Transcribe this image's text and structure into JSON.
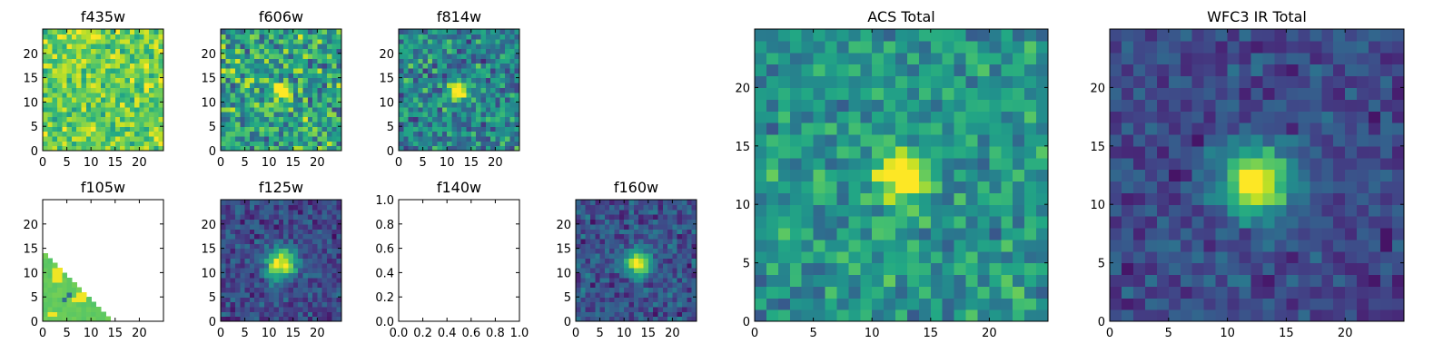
{
  "figure": {
    "background": "#ffffff"
  },
  "colormap": "viridis",
  "chart_data": [
    {
      "type": "heatmap",
      "title": "f435w",
      "xlabel": "",
      "ylabel": "",
      "xlim": [
        0,
        25
      ],
      "ylim": [
        0,
        25
      ],
      "grid_size": 25,
      "xticks": [
        0,
        5,
        10,
        15,
        20
      ],
      "yticks": [
        0,
        5,
        10,
        15,
        20
      ],
      "xtick_labels": [
        "0",
        "5",
        "10",
        "15",
        "20"
      ],
      "ytick_labels": [
        "0",
        "5",
        "10",
        "15",
        "20"
      ],
      "content": "noise",
      "mean": 0.78,
      "spread": 0.28,
      "source": null,
      "seed": 11
    },
    {
      "type": "heatmap",
      "title": "f606w",
      "xlabel": "",
      "ylabel": "",
      "xlim": [
        0,
        25
      ],
      "ylim": [
        0,
        25
      ],
      "grid_size": 25,
      "xticks": [
        0,
        5,
        10,
        15,
        20
      ],
      "yticks": [
        0,
        5,
        10,
        15,
        20
      ],
      "xtick_labels": [
        "0",
        "5",
        "10",
        "15",
        "20"
      ],
      "ytick_labels": [
        "0",
        "5",
        "10",
        "15",
        "20"
      ],
      "content": "noise",
      "mean": 0.58,
      "spread": 0.4,
      "source": {
        "x": 12.5,
        "y": 12.5,
        "sigma": 1.1,
        "amplitude": 0.7
      },
      "seed": 23
    },
    {
      "type": "heatmap",
      "title": "f814w",
      "xlabel": "",
      "ylabel": "",
      "xlim": [
        0,
        25
      ],
      "ylim": [
        0,
        25
      ],
      "grid_size": 25,
      "xticks": [
        0,
        5,
        10,
        15,
        20
      ],
      "yticks": [
        0,
        5,
        10,
        15,
        20
      ],
      "xtick_labels": [
        "0",
        "5",
        "10",
        "15",
        "20"
      ],
      "ytick_labels": [
        "0",
        "5",
        "10",
        "15",
        "20"
      ],
      "content": "noise",
      "mean": 0.45,
      "spread": 0.35,
      "source": {
        "x": 12.5,
        "y": 12.5,
        "sigma": 1.3,
        "amplitude": 0.8
      },
      "seed": 37
    },
    {
      "type": "heatmap",
      "title": "f105w",
      "xlabel": "",
      "ylabel": "",
      "xlim": [
        0,
        25
      ],
      "ylim": [
        0,
        25
      ],
      "grid_size": 25,
      "xticks": [
        0,
        5,
        10,
        15,
        20
      ],
      "yticks": [
        0,
        5,
        10,
        15,
        20
      ],
      "xtick_labels": [
        "0",
        "5",
        "10",
        "15",
        "20"
      ],
      "ytick_labels": [
        "0",
        "5",
        "10",
        "15",
        "20"
      ],
      "content": "corner-triangle",
      "mean": 0.76,
      "spread": 0.06,
      "bright_cells": [
        [
          2,
          8
        ],
        [
          3,
          8
        ],
        [
          2,
          9
        ],
        [
          3,
          9
        ],
        [
          2,
          10
        ],
        [
          3,
          10
        ],
        [
          7,
          4
        ],
        [
          8,
          4
        ],
        [
          7,
          5
        ],
        [
          8,
          5
        ],
        [
          6,
          4
        ],
        [
          1,
          1
        ],
        [
          2,
          1
        ]
      ],
      "dark_cells": [
        [
          5,
          5
        ],
        [
          4,
          4
        ]
      ],
      "seed": 41
    },
    {
      "type": "heatmap",
      "title": "f125w",
      "xlabel": "",
      "ylabel": "",
      "xlim": [
        0,
        25
      ],
      "ylim": [
        0,
        25
      ],
      "grid_size": 25,
      "xticks": [
        0,
        5,
        10,
        15,
        20
      ],
      "yticks": [
        0,
        5,
        10,
        15,
        20
      ],
      "xtick_labels": [
        "0",
        "5",
        "10",
        "15",
        "20"
      ],
      "ytick_labels": [
        "0",
        "5",
        "10",
        "15",
        "20"
      ],
      "content": "noise",
      "mean": 0.22,
      "spread": 0.2,
      "source": {
        "x": 12.5,
        "y": 12,
        "sigma": 2.2,
        "amplitude": 0.8
      },
      "seed": 53
    },
    {
      "type": "empty",
      "title": "f140w",
      "xlabel": "",
      "ylabel": "",
      "xlim": [
        0.0,
        1.0
      ],
      "ylim": [
        0.0,
        1.0
      ],
      "xticks": [
        0.0,
        0.2,
        0.4,
        0.6,
        0.8,
        1.0
      ],
      "yticks": [
        0.0,
        0.2,
        0.4,
        0.6,
        0.8,
        1.0
      ],
      "xtick_labels": [
        "0.0",
        "0.2",
        "0.4",
        "0.6",
        "0.8",
        "1.0"
      ],
      "ytick_labels": [
        "0.0",
        "0.2",
        "0.4",
        "0.6",
        "0.8",
        "1.0"
      ]
    },
    {
      "type": "heatmap",
      "title": "f160w",
      "xlabel": "",
      "ylabel": "",
      "xlim": [
        0,
        25
      ],
      "ylim": [
        0,
        25
      ],
      "grid_size": 25,
      "xticks": [
        0,
        5,
        10,
        15,
        20
      ],
      "yticks": [
        0,
        5,
        10,
        15,
        20
      ],
      "xtick_labels": [
        "0",
        "5",
        "10",
        "15",
        "20"
      ],
      "ytick_labels": [
        "0",
        "5",
        "10",
        "15",
        "20"
      ],
      "content": "noise",
      "mean": 0.25,
      "spread": 0.22,
      "source": {
        "x": 13,
        "y": 12,
        "sigma": 1.8,
        "amplitude": 0.8
      },
      "seed": 67
    },
    {
      "type": "heatmap",
      "title": "ACS Total",
      "xlabel": "",
      "ylabel": "",
      "xlim": [
        0,
        25
      ],
      "ylim": [
        0,
        25
      ],
      "grid_size": 25,
      "xticks": [
        0,
        5,
        10,
        15,
        20
      ],
      "yticks": [
        0,
        5,
        10,
        15,
        20
      ],
      "xtick_labels": [
        "0",
        "5",
        "10",
        "15",
        "20"
      ],
      "ytick_labels": [
        "0",
        "5",
        "10",
        "15",
        "20"
      ],
      "content": "noise",
      "mean": 0.52,
      "spread": 0.26,
      "source": {
        "x": 12.5,
        "y": 12.5,
        "sigma": 1.4,
        "amplitude": 0.8
      },
      "seed": 79
    },
    {
      "type": "heatmap",
      "title": "WFC3 IR Total",
      "xlabel": "",
      "ylabel": "",
      "xlim": [
        0,
        25
      ],
      "ylim": [
        0,
        25
      ],
      "grid_size": 25,
      "xticks": [
        0,
        5,
        10,
        15,
        20
      ],
      "yticks": [
        0,
        5,
        10,
        15,
        20
      ],
      "xtick_labels": [
        "0",
        "5",
        "10",
        "15",
        "20"
      ],
      "ytick_labels": [
        "0",
        "5",
        "10",
        "15",
        "20"
      ],
      "content": "noise",
      "mean": 0.22,
      "spread": 0.18,
      "source": {
        "x": 12.5,
        "y": 12,
        "sigma": 2.1,
        "amplitude": 0.85
      },
      "seed": 97
    }
  ]
}
